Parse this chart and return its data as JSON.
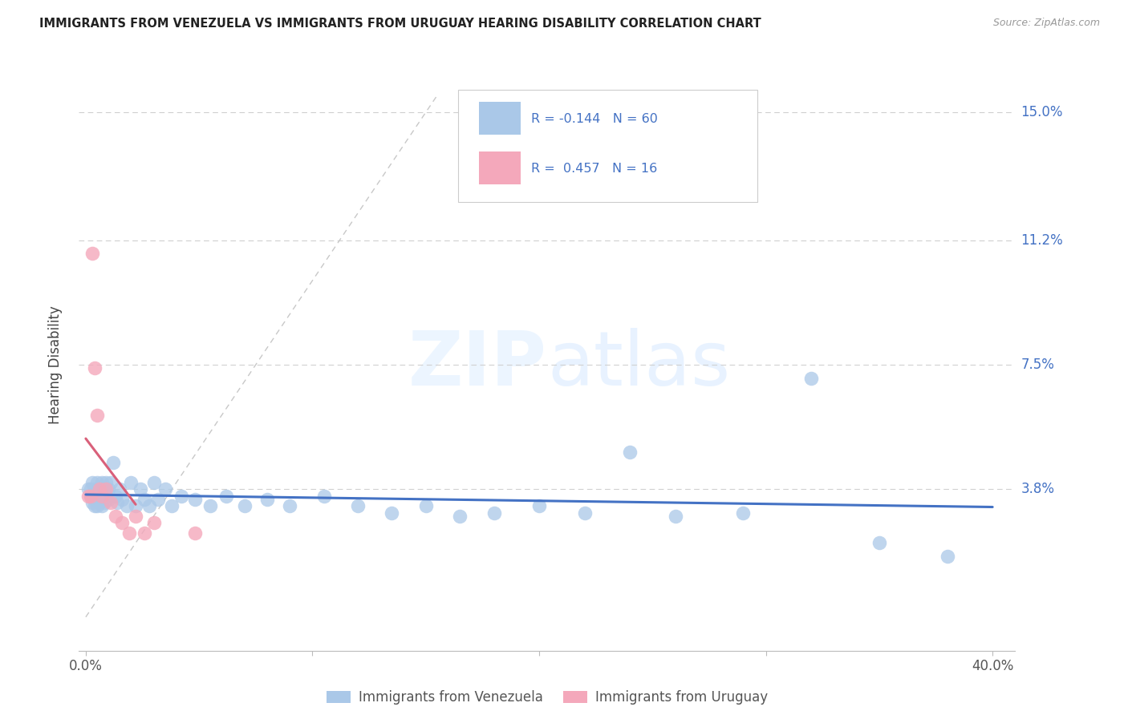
{
  "title": "IMMIGRANTS FROM VENEZUELA VS IMMIGRANTS FROM URUGUAY HEARING DISABILITY CORRELATION CHART",
  "source": "Source: ZipAtlas.com",
  "ylabel": "Hearing Disability",
  "venezuela_color": "#aac8e8",
  "uruguay_color": "#f4a8bb",
  "venezuela_R": -0.144,
  "venezuela_N": 60,
  "uruguay_R": 0.457,
  "uruguay_N": 16,
  "venezuela_line_color": "#4472c4",
  "uruguay_line_color": "#d9607a",
  "diagonal_line_color": "#c8c8c8",
  "watermark_zip": "ZIP",
  "watermark_atlas": "atlas",
  "legend_label_venezuela": "Immigrants from Venezuela",
  "legend_label_uruguay": "Immigrants from Uruguay",
  "venezuela_x": [
    0.001,
    0.002,
    0.002,
    0.003,
    0.003,
    0.003,
    0.004,
    0.004,
    0.004,
    0.005,
    0.005,
    0.005,
    0.006,
    0.006,
    0.007,
    0.007,
    0.007,
    0.008,
    0.008,
    0.009,
    0.009,
    0.01,
    0.01,
    0.011,
    0.012,
    0.013,
    0.014,
    0.015,
    0.016,
    0.018,
    0.02,
    0.022,
    0.024,
    0.026,
    0.028,
    0.03,
    0.032,
    0.035,
    0.038,
    0.042,
    0.048,
    0.055,
    0.062,
    0.07,
    0.08,
    0.09,
    0.105,
    0.12,
    0.135,
    0.15,
    0.165,
    0.18,
    0.2,
    0.22,
    0.24,
    0.26,
    0.29,
    0.32,
    0.35,
    0.38
  ],
  "venezuela_y": [
    0.038,
    0.038,
    0.036,
    0.04,
    0.036,
    0.034,
    0.038,
    0.035,
    0.033,
    0.04,
    0.036,
    0.033,
    0.038,
    0.034,
    0.04,
    0.036,
    0.033,
    0.038,
    0.034,
    0.04,
    0.036,
    0.038,
    0.035,
    0.04,
    0.046,
    0.036,
    0.034,
    0.038,
    0.035,
    0.033,
    0.04,
    0.033,
    0.038,
    0.035,
    0.033,
    0.04,
    0.035,
    0.038,
    0.033,
    0.036,
    0.035,
    0.033,
    0.036,
    0.033,
    0.035,
    0.033,
    0.036,
    0.033,
    0.031,
    0.033,
    0.03,
    0.031,
    0.033,
    0.031,
    0.049,
    0.03,
    0.031,
    0.03,
    0.031,
    0.03
  ],
  "venezuela_y_overrides": {
    "54": 0.049,
    "57": 0.071,
    "58": 0.022,
    "59": 0.018
  },
  "uruguay_x": [
    0.001,
    0.002,
    0.003,
    0.004,
    0.005,
    0.006,
    0.007,
    0.009,
    0.011,
    0.013,
    0.016,
    0.019,
    0.022,
    0.026,
    0.03,
    0.048
  ],
  "uruguay_y": [
    0.036,
    0.036,
    0.108,
    0.074,
    0.06,
    0.038,
    0.036,
    0.038,
    0.034,
    0.03,
    0.028,
    0.025,
    0.03,
    0.025,
    0.028,
    0.025
  ],
  "xlim": [
    -0.003,
    0.41
  ],
  "ylim": [
    -0.01,
    0.16
  ],
  "ytick_positions": [
    0.038,
    0.075,
    0.112,
    0.15
  ],
  "ytick_labels": [
    "3.8%",
    "7.5%",
    "11.2%",
    "15.0%"
  ],
  "xtick_positions": [
    0.0,
    0.1,
    0.2,
    0.3,
    0.4
  ],
  "xtick_labels": [
    "0.0%",
    "",
    "",
    "",
    "40.0%"
  ]
}
